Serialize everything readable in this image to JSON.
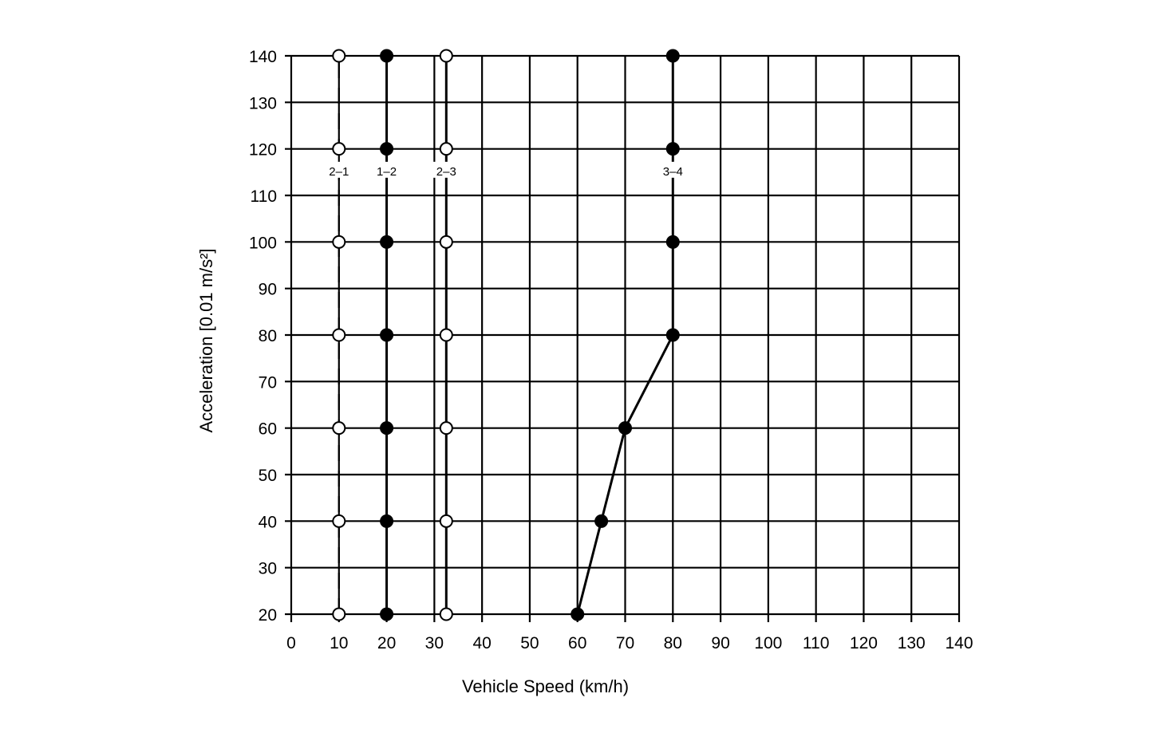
{
  "chart_data": {
    "type": "line",
    "title": "",
    "xlabel": "Vehicle Speed (km/h)",
    "ylabel": "Acceleration [0.01 m/s²]",
    "xlim": [
      0,
      140
    ],
    "ylim": [
      20,
      140
    ],
    "xticks": [
      0,
      10,
      20,
      30,
      40,
      50,
      60,
      70,
      80,
      90,
      100,
      110,
      120,
      130,
      140
    ],
    "yticks": [
      20,
      30,
      40,
      50,
      60,
      70,
      80,
      90,
      100,
      110,
      120,
      130,
      140
    ],
    "grid": true,
    "series": [
      {
        "name": "2–1",
        "line": "dashed",
        "marker": "open",
        "x": [
          10,
          10,
          10,
          10,
          10,
          10,
          10
        ],
        "y": [
          20,
          40,
          60,
          80,
          100,
          120,
          140
        ]
      },
      {
        "name": "1–2",
        "line": "solid",
        "marker": "filled",
        "x": [
          20,
          20,
          20,
          20,
          20,
          20,
          20
        ],
        "y": [
          20,
          40,
          60,
          80,
          100,
          120,
          140
        ]
      },
      {
        "name": "2–3",
        "line": "solid",
        "marker": "open",
        "x": [
          32.5,
          32.5,
          32.5,
          32.5,
          32.5,
          32.5,
          32.5
        ],
        "y": [
          20,
          40,
          60,
          80,
          100,
          120,
          140
        ]
      },
      {
        "name": "3–4",
        "line": "solid",
        "marker": "filled",
        "x": [
          60,
          65,
          70,
          80,
          80,
          80,
          80
        ],
        "y": [
          20,
          40,
          60,
          80,
          100,
          120,
          140
        ]
      }
    ]
  }
}
